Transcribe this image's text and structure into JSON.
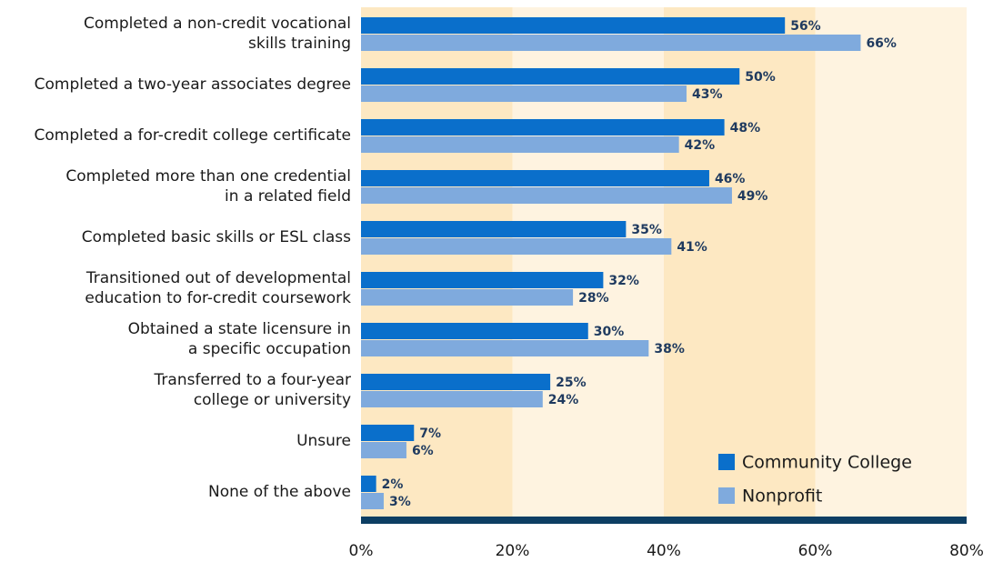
{
  "chart_data": {
    "type": "bar",
    "orientation": "horizontal",
    "categories": [
      "Completed a non-credit vocational\nskills training",
      "Completed a two-year associates degree",
      "Completed a for-credit college certificate",
      "Completed more than one credential\nin a related field",
      "Completed basic skills or ESL class",
      "Transitioned out of developmental\neducation to for-credit coursework",
      "Obtained a state licensure in\na specific occupation",
      "Transferred to a four-year\ncollege or university",
      "Unsure",
      "None of the above"
    ],
    "series": [
      {
        "name": "Community College",
        "color": "#0a6fcb",
        "values": [
          56,
          50,
          48,
          46,
          35,
          32,
          30,
          25,
          7,
          2
        ],
        "value_labels": [
          "56%",
          "50%",
          "48%",
          "46%",
          "35%",
          "32%",
          "30%",
          "25%",
          "7%",
          "2%"
        ]
      },
      {
        "name": "Nonprofit",
        "color": "#7faadd",
        "values": [
          66,
          43,
          42,
          49,
          41,
          28,
          38,
          24,
          6,
          3
        ],
        "value_labels": [
          "66%",
          "43%",
          "42%",
          "49%",
          "41%",
          "28%",
          "38%",
          "24%",
          "6%",
          "3%"
        ]
      }
    ],
    "xlim": [
      0,
      80
    ],
    "xticks": [
      {
        "value": 0,
        "label": "0%"
      },
      {
        "value": 20,
        "label": "20%"
      },
      {
        "value": 40,
        "label": "40%"
      },
      {
        "value": 60,
        "label": "60%"
      },
      {
        "value": 80,
        "label": "80%"
      }
    ],
    "legend": "lower right"
  }
}
